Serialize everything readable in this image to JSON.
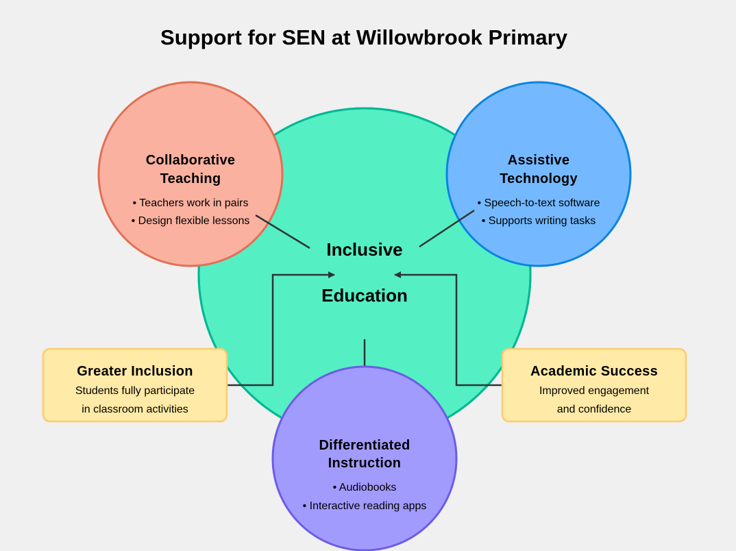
{
  "title": "Support for SEN at Willowbrook Primary",
  "center": {
    "line1": "Inclusive",
    "line2": "Education",
    "fill": "#55efc4",
    "stroke": "#00b894"
  },
  "circles": {
    "collaborative": {
      "heading": [
        "Collaborative",
        "Teaching"
      ],
      "points": [
        "• Teachers work in pairs",
        "• Design flexible lessons"
      ],
      "fill": "#fab1a0",
      "stroke": "#e17055"
    },
    "assistive": {
      "heading": [
        "Assistive",
        "Technology"
      ],
      "points": [
        "• Speech-to-text software",
        "• Supports writing tasks"
      ],
      "fill": "#74b9ff",
      "stroke": "#0984e3"
    },
    "differentiated": {
      "heading": [
        "Differentiated",
        "Instruction"
      ],
      "points": [
        "• Audiobooks",
        "• Interactive reading apps"
      ],
      "fill": "#a29bfe",
      "stroke": "#6c5ce7"
    }
  },
  "outcomes": {
    "inclusion": {
      "heading": "Greater Inclusion",
      "lines": [
        "Students fully participate",
        "in classroom activities"
      ]
    },
    "success": {
      "heading": "Academic Success",
      "lines": [
        "Improved engagement",
        "and confidence"
      ]
    },
    "fill": "#ffeaa7",
    "stroke": "#fdcb6e"
  },
  "connector_color": "#2d3436"
}
